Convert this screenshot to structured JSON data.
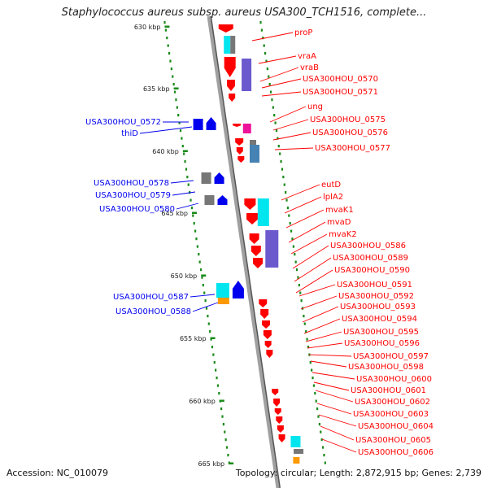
{
  "title": "Staphylococcus aureus subsp. aureus USA300_TCH1516, complete...",
  "accession": "Accession: NC_010079",
  "topology": "Topology: circular; Length: 2,872,915 bp; Genes: 2,739",
  "colors": {
    "forward_gene": "#ff0000",
    "reverse_gene": "#0000ee",
    "hypothetical": "#777777",
    "cog_blue": "#6a5acd",
    "cog_cyan": "#00e5ee",
    "cog_orange": "#ff9900",
    "cog_magenta": "#ee1199",
    "gc_dots": "#1a8a1a",
    "backbone": "#a0a0a0"
  },
  "scale": {
    "ticks": [
      "630 kbp",
      "635 kbp",
      "640 kbp",
      "645 kbp",
      "650 kbp",
      "655 kbp",
      "660 kbp",
      "665 kbp"
    ]
  },
  "left_genes": [
    "USA300HOU_0572",
    "thiD",
    "USA300HOU_0578",
    "USA300HOU_0579",
    "USA300HOU_0580",
    "USA300HOU_0587",
    "USA300HOU_0588"
  ],
  "right_genes": [
    "proP",
    "vraA",
    "vraB",
    "USA300HOU_0570",
    "USA300HOU_0571",
    "ung",
    "USA300HOU_0575",
    "USA300HOU_0576",
    "USA300HOU_0577",
    "eutD",
    "lplA2",
    "mvaK1",
    "mvaD",
    "mvaK2",
    "USA300HOU_0586",
    "USA300HOU_0589",
    "USA300HOU_0590",
    "USA300HOU_0591",
    "USA300HOU_0592",
    "USA300HOU_0593",
    "USA300HOU_0594",
    "USA300HOU_0595",
    "USA300HOU_0596",
    "USA300HOU_0597",
    "USA300HOU_0598",
    "USA300HOU_0600",
    "USA300HOU_0601",
    "USA300HOU_0602",
    "USA300HOU_0603",
    "USA300HOU_0604",
    "USA300HOU_0605",
    "USA300HOU_0606"
  ]
}
